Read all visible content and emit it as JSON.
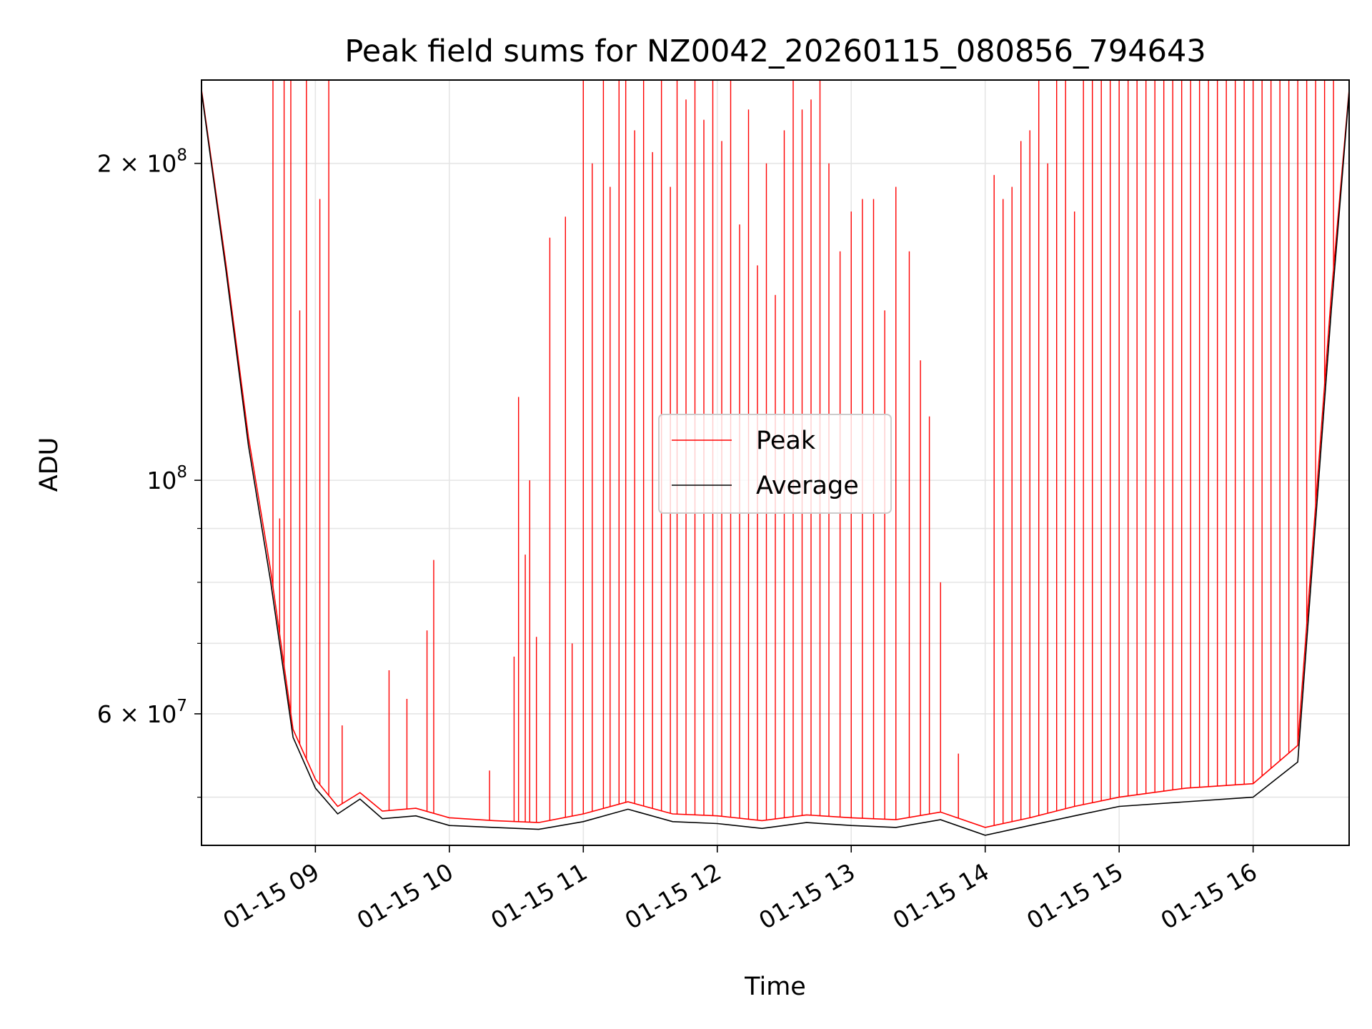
{
  "chart_data": {
    "type": "line",
    "title": "Peak field sums for NZ0042_20260115_080856_794643",
    "xlabel": "Time",
    "ylabel": "ADU",
    "y_scale": "log",
    "ylim": [
      45000000,
      240000000
    ],
    "xlim": [
      "2026-01-15 08:09",
      "2026-01-15 16:43"
    ],
    "grid": true,
    "legend_position": "center",
    "x_ticks": [
      "01-15 09",
      "01-15 10",
      "01-15 11",
      "01-15 12",
      "01-15 13",
      "01-15 14",
      "01-15 15",
      "01-15 16"
    ],
    "y_ticks_major": [
      {
        "value": 60000000,
        "mantissa": "6",
        "exponent": "7"
      },
      {
        "value": 100000000,
        "mantissa": "",
        "exponent": "8"
      },
      {
        "value": 200000000,
        "mantissa": "2",
        "exponent": "8"
      }
    ],
    "y_ticks_minor": [
      50000000,
      70000000,
      80000000,
      90000000
    ],
    "series": [
      {
        "name": "Peak",
        "color": "#ff0000",
        "baseline": [
          [
            "2026-01-15 08:09",
            235000000
          ],
          [
            "2026-01-15 08:20",
            160000000
          ],
          [
            "2026-01-15 08:30",
            110000000
          ],
          [
            "2026-01-15 08:40",
            82000000
          ],
          [
            "2026-01-15 08:50",
            58000000
          ],
          [
            "2026-01-15 09:00",
            52000000
          ],
          [
            "2026-01-15 09:10",
            49000000
          ],
          [
            "2026-01-15 09:20",
            50500000
          ],
          [
            "2026-01-15 09:30",
            48500000
          ],
          [
            "2026-01-15 09:45",
            48800000
          ],
          [
            "2026-01-15 10:00",
            47800000
          ],
          [
            "2026-01-15 10:20",
            47500000
          ],
          [
            "2026-01-15 10:40",
            47300000
          ],
          [
            "2026-01-15 11:00",
            48200000
          ],
          [
            "2026-01-15 11:20",
            49500000
          ],
          [
            "2026-01-15 11:40",
            48200000
          ],
          [
            "2026-01-15 12:00",
            48000000
          ],
          [
            "2026-01-15 12:20",
            47500000
          ],
          [
            "2026-01-15 12:40",
            48100000
          ],
          [
            "2026-01-15 13:00",
            47800000
          ],
          [
            "2026-01-15 13:20",
            47600000
          ],
          [
            "2026-01-15 13:40",
            48400000
          ],
          [
            "2026-01-15 14:00",
            46800000
          ],
          [
            "2026-01-15 14:20",
            47800000
          ],
          [
            "2026-01-15 14:40",
            49000000
          ],
          [
            "2026-01-15 15:00",
            50000000
          ],
          [
            "2026-01-15 15:30",
            51000000
          ],
          [
            "2026-01-15 16:00",
            51500000
          ],
          [
            "2026-01-15 16:20",
            56000000
          ],
          [
            "2026-01-15 16:35",
            150000000
          ],
          [
            "2026-01-15 16:43",
            235000000
          ]
        ],
        "spikes": [
          [
            "2026-01-15 08:41",
            240000000
          ],
          [
            "2026-01-15 08:44",
            92000000
          ],
          [
            "2026-01-15 08:46",
            240000000
          ],
          [
            "2026-01-15 08:49",
            240000000
          ],
          [
            "2026-01-15 08:53",
            145000000
          ],
          [
            "2026-01-15 08:56",
            240000000
          ],
          [
            "2026-01-15 09:02",
            185000000
          ],
          [
            "2026-01-15 09:06",
            240000000
          ],
          [
            "2026-01-15 09:12",
            58500000
          ],
          [
            "2026-01-15 09:33",
            66000000
          ],
          [
            "2026-01-15 09:41",
            62000000
          ],
          [
            "2026-01-15 09:50",
            72000000
          ],
          [
            "2026-01-15 09:53",
            84000000
          ],
          [
            "2026-01-15 10:18",
            53000000
          ],
          [
            "2026-01-15 10:29",
            68000000
          ],
          [
            "2026-01-15 10:31",
            120000000
          ],
          [
            "2026-01-15 10:34",
            85000000
          ],
          [
            "2026-01-15 10:36",
            100000000
          ],
          [
            "2026-01-15 10:39",
            71000000
          ],
          [
            "2026-01-15 10:45",
            170000000
          ],
          [
            "2026-01-15 10:52",
            178000000
          ],
          [
            "2026-01-15 10:55",
            70000000
          ],
          [
            "2026-01-15 11:00",
            240000000
          ],
          [
            "2026-01-15 11:04",
            200000000
          ],
          [
            "2026-01-15 11:09",
            240000000
          ],
          [
            "2026-01-15 11:12",
            190000000
          ],
          [
            "2026-01-15 11:16",
            240000000
          ],
          [
            "2026-01-15 11:19",
            240000000
          ],
          [
            "2026-01-15 11:23",
            215000000
          ],
          [
            "2026-01-15 11:27",
            240000000
          ],
          [
            "2026-01-15 11:31",
            205000000
          ],
          [
            "2026-01-15 11:35",
            240000000
          ],
          [
            "2026-01-15 11:39",
            190000000
          ],
          [
            "2026-01-15 11:42",
            240000000
          ],
          [
            "2026-01-15 11:46",
            230000000
          ],
          [
            "2026-01-15 11:50",
            240000000
          ],
          [
            "2026-01-15 11:54",
            220000000
          ],
          [
            "2026-01-15 11:58",
            240000000
          ],
          [
            "2026-01-15 12:02",
            210000000
          ],
          [
            "2026-01-15 12:06",
            240000000
          ],
          [
            "2026-01-15 12:10",
            175000000
          ],
          [
            "2026-01-15 12:14",
            225000000
          ],
          [
            "2026-01-15 12:18",
            160000000
          ],
          [
            "2026-01-15 12:22",
            200000000
          ],
          [
            "2026-01-15 12:26",
            150000000
          ],
          [
            "2026-01-15 12:30",
            215000000
          ],
          [
            "2026-01-15 12:34",
            240000000
          ],
          [
            "2026-01-15 12:38",
            225000000
          ],
          [
            "2026-01-15 12:42",
            230000000
          ],
          [
            "2026-01-15 12:46",
            240000000
          ],
          [
            "2026-01-15 12:50",
            200000000
          ],
          [
            "2026-01-15 12:55",
            165000000
          ],
          [
            "2026-01-15 13:00",
            180000000
          ],
          [
            "2026-01-15 13:05",
            185000000
          ],
          [
            "2026-01-15 13:10",
            185000000
          ],
          [
            "2026-01-15 13:15",
            145000000
          ],
          [
            "2026-01-15 13:20",
            190000000
          ],
          [
            "2026-01-15 13:26",
            165000000
          ],
          [
            "2026-01-15 13:31",
            130000000
          ],
          [
            "2026-01-15 13:35",
            115000000
          ],
          [
            "2026-01-15 13:40",
            80000000
          ],
          [
            "2026-01-15 13:48",
            55000000
          ],
          [
            "2026-01-15 14:04",
            195000000
          ],
          [
            "2026-01-15 14:08",
            185000000
          ],
          [
            "2026-01-15 14:12",
            190000000
          ],
          [
            "2026-01-15 14:16",
            210000000
          ],
          [
            "2026-01-15 14:20",
            215000000
          ],
          [
            "2026-01-15 14:24",
            240000000
          ],
          [
            "2026-01-15 14:28",
            200000000
          ],
          [
            "2026-01-15 14:32",
            240000000
          ],
          [
            "2026-01-15 14:36",
            240000000
          ],
          [
            "2026-01-15 14:40",
            180000000
          ],
          [
            "2026-01-15 14:44",
            240000000
          ],
          [
            "2026-01-15 14:48",
            240000000
          ],
          [
            "2026-01-15 14:52",
            240000000
          ],
          [
            "2026-01-15 14:56",
            240000000
          ],
          [
            "2026-01-15 15:00",
            240000000
          ],
          [
            "2026-01-15 15:04",
            240000000
          ],
          [
            "2026-01-15 15:08",
            240000000
          ],
          [
            "2026-01-15 15:12",
            240000000
          ],
          [
            "2026-01-15 15:16",
            240000000
          ],
          [
            "2026-01-15 15:20",
            240000000
          ],
          [
            "2026-01-15 15:24",
            240000000
          ],
          [
            "2026-01-15 15:28",
            240000000
          ],
          [
            "2026-01-15 15:32",
            240000000
          ],
          [
            "2026-01-15 15:36",
            240000000
          ],
          [
            "2026-01-15 15:40",
            240000000
          ],
          [
            "2026-01-15 15:44",
            240000000
          ],
          [
            "2026-01-15 15:48",
            240000000
          ],
          [
            "2026-01-15 15:52",
            240000000
          ],
          [
            "2026-01-15 15:56",
            240000000
          ],
          [
            "2026-01-15 16:00",
            240000000
          ],
          [
            "2026-01-15 16:04",
            240000000
          ],
          [
            "2026-01-15 16:08",
            240000000
          ],
          [
            "2026-01-15 16:12",
            240000000
          ],
          [
            "2026-01-15 16:16",
            240000000
          ],
          [
            "2026-01-15 16:20",
            240000000
          ],
          [
            "2026-01-15 16:24",
            240000000
          ],
          [
            "2026-01-15 16:28",
            240000000
          ],
          [
            "2026-01-15 16:32",
            240000000
          ],
          [
            "2026-01-15 16:36",
            240000000
          ]
        ]
      },
      {
        "name": "Average",
        "color": "#000000",
        "baseline": [
          [
            "2026-01-15 08:09",
            234000000
          ],
          [
            "2026-01-15 08:20",
            158000000
          ],
          [
            "2026-01-15 08:30",
            108000000
          ],
          [
            "2026-01-15 08:40",
            80000000
          ],
          [
            "2026-01-15 08:50",
            57000000
          ],
          [
            "2026-01-15 09:00",
            51000000
          ],
          [
            "2026-01-15 09:10",
            48200000
          ],
          [
            "2026-01-15 09:20",
            49800000
          ],
          [
            "2026-01-15 09:30",
            47700000
          ],
          [
            "2026-01-15 09:45",
            48000000
          ],
          [
            "2026-01-15 10:00",
            47000000
          ],
          [
            "2026-01-15 10:20",
            46800000
          ],
          [
            "2026-01-15 10:40",
            46600000
          ],
          [
            "2026-01-15 11:00",
            47400000
          ],
          [
            "2026-01-15 11:20",
            48700000
          ],
          [
            "2026-01-15 11:40",
            47400000
          ],
          [
            "2026-01-15 12:00",
            47200000
          ],
          [
            "2026-01-15 12:20",
            46700000
          ],
          [
            "2026-01-15 12:40",
            47300000
          ],
          [
            "2026-01-15 13:00",
            47000000
          ],
          [
            "2026-01-15 13:20",
            46800000
          ],
          [
            "2026-01-15 13:40",
            47600000
          ],
          [
            "2026-01-15 14:00",
            46000000
          ],
          [
            "2026-01-15 14:20",
            47000000
          ],
          [
            "2026-01-15 14:40",
            48000000
          ],
          [
            "2026-01-15 15:00",
            49000000
          ],
          [
            "2026-01-15 15:30",
            49500000
          ],
          [
            "2026-01-15 16:00",
            50000000
          ],
          [
            "2026-01-15 16:20",
            54000000
          ],
          [
            "2026-01-15 16:35",
            145000000
          ],
          [
            "2026-01-15 16:43",
            234000000
          ]
        ]
      }
    ]
  }
}
